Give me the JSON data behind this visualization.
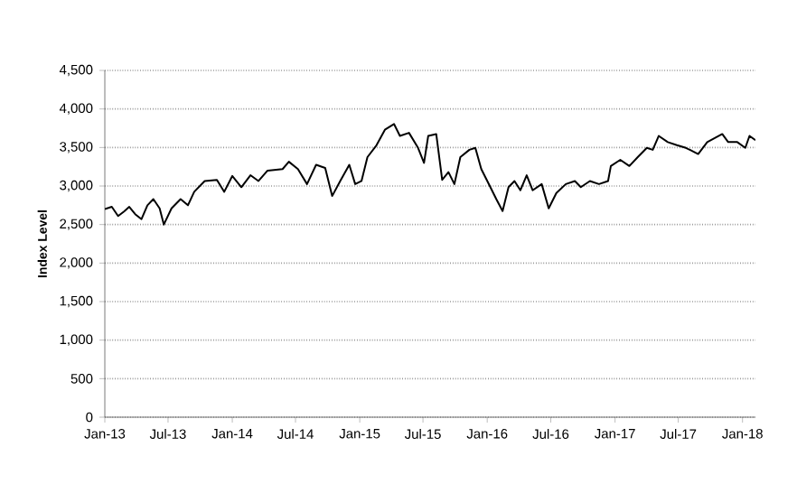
{
  "chart_data": {
    "type": "line",
    "ylabel": "Index Level",
    "x": [
      "2013-01-01",
      "2013-01-21",
      "2013-02-08",
      "2013-02-25",
      "2013-03-12",
      "2013-03-29",
      "2013-04-16",
      "2013-05-03",
      "2013-05-20",
      "2013-06-07",
      "2013-06-19",
      "2013-07-11",
      "2013-08-06",
      "2013-08-27",
      "2013-09-14",
      "2013-10-14",
      "2013-11-18",
      "2013-12-09",
      "2014-01-01",
      "2014-01-27",
      "2014-02-22",
      "2014-03-17",
      "2014-04-12",
      "2014-05-25",
      "2014-06-12",
      "2014-07-08",
      "2014-08-03",
      "2014-08-29",
      "2014-09-24",
      "2014-10-14",
      "2014-11-06",
      "2014-12-02",
      "2014-12-19",
      "2015-01-06",
      "2015-01-23",
      "2015-02-18",
      "2015-03-14",
      "2015-04-09",
      "2015-04-26",
      "2015-05-22",
      "2015-06-17",
      "2015-07-04",
      "2015-07-16",
      "2015-08-08",
      "2015-08-25",
      "2015-09-12",
      "2015-09-29",
      "2015-10-16",
      "2015-11-11",
      "2015-11-28",
      "2015-12-15",
      "2016-01-10",
      "2016-01-27",
      "2016-02-14",
      "2016-03-02",
      "2016-03-19",
      "2016-04-05",
      "2016-04-23",
      "2016-05-10",
      "2016-06-05",
      "2016-06-25",
      "2016-07-17",
      "2016-08-13",
      "2016-09-08",
      "2016-09-25",
      "2016-10-21",
      "2016-11-16",
      "2016-12-12",
      "2016-12-20",
      "2017-01-16",
      "2017-02-11",
      "2017-03-07",
      "2017-04-02",
      "2017-04-19",
      "2017-05-06",
      "2017-06-01",
      "2017-06-27",
      "2017-07-23",
      "2017-08-27",
      "2017-09-22",
      "2017-11-04",
      "2017-11-21",
      "2017-12-17",
      "2018-01-09",
      "2018-01-21",
      "2018-02-07"
    ],
    "series": [
      {
        "color": "#000000",
        "values": [
          2700,
          2730,
          2610,
          2670,
          2730,
          2635,
          2570,
          2750,
          2830,
          2710,
          2500,
          2710,
          2830,
          2750,
          2925,
          3065,
          3080,
          2925,
          3130,
          2985,
          3140,
          3065,
          3200,
          3220,
          3315,
          3220,
          3025,
          3275,
          3235,
          2870,
          3065,
          3275,
          3025,
          3065,
          3375,
          3530,
          3730,
          3805,
          3650,
          3690,
          3495,
          3300,
          3650,
          3675,
          3080,
          3180,
          3025,
          3375,
          3470,
          3495,
          3220,
          2985,
          2830,
          2675,
          2985,
          3065,
          2945,
          3140,
          2945,
          3025,
          2710,
          2910,
          3025,
          3065,
          2985,
          3065,
          3025,
          3065,
          3260,
          3340,
          3260,
          3375,
          3495,
          3470,
          3650,
          3570,
          3530,
          3495,
          3415,
          3570,
          3675,
          3570,
          3570,
          3495,
          3650,
          3595
        ]
      }
    ],
    "xlim": [
      "2013-01-01",
      "2018-02-07"
    ],
    "xticks": [
      {
        "value": "2013-01-01",
        "label": "Jan-13"
      },
      {
        "value": "2013-07-01",
        "label": "Jul-13"
      },
      {
        "value": "2014-01-01",
        "label": "Jan-14"
      },
      {
        "value": "2014-07-01",
        "label": "Jul-14"
      },
      {
        "value": "2015-01-01",
        "label": "Jan-15"
      },
      {
        "value": "2015-07-01",
        "label": "Jul-15"
      },
      {
        "value": "2016-01-01",
        "label": "Jan-16"
      },
      {
        "value": "2016-07-01",
        "label": "Jul-16"
      },
      {
        "value": "2017-01-01",
        "label": "Jan-17"
      },
      {
        "value": "2017-07-01",
        "label": "Jul-17"
      },
      {
        "value": "2018-01-01",
        "label": "Jan-18"
      }
    ],
    "ylim": [
      0,
      4500
    ],
    "yticks": [
      0,
      500,
      {
        "value": 1000,
        "label": "1,000"
      },
      {
        "value": 1500,
        "label": "1,500"
      },
      {
        "value": 2000,
        "label": "2,000"
      },
      {
        "value": 2500,
        "label": "2,500"
      },
      {
        "value": 3000,
        "label": "3,000"
      },
      {
        "value": 3500,
        "label": "3,500"
      },
      {
        "value": 4000,
        "label": "4,000"
      },
      {
        "value": 4500,
        "label": "4,500"
      }
    ],
    "grid": "y",
    "marker": "none",
    "line_style": "solid"
  }
}
